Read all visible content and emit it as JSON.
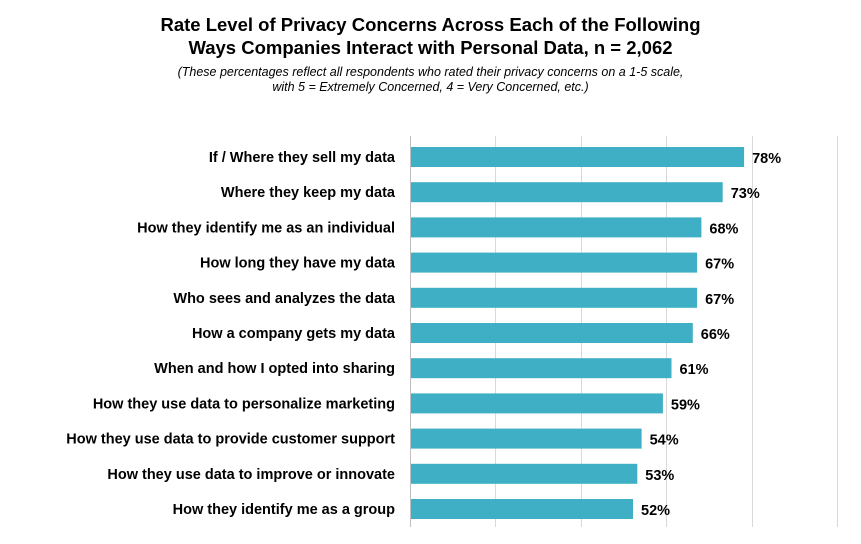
{
  "title_line1": "Rate Level of Privacy Concerns Across Each of the Following",
  "title_line2": "Ways Companies Interact with Personal Data, n = 2,062",
  "subtitle_line1": "(These percentages reflect all respondents who rated their privacy concerns on a 1-5 scale,",
  "subtitle_line2": "with 5 = Extremely Concerned, 4 = Very Concerned, etc.)",
  "colors": {
    "bar": "#3FAFC5",
    "grid": "#d9d9d9",
    "axis": "#bfbfbf"
  },
  "chart_data": {
    "type": "bar",
    "orientation": "horizontal",
    "title": "Rate Level of Privacy Concerns Across Each of the Following Ways Companies Interact with Personal Data, n = 2,062",
    "subtitle": "(These percentages reflect all respondents who rated their privacy concerns on a 1-5 scale, with 5 = Extremely Concerned, 4 = Very Concerned, etc.)",
    "categories": [
      "If / Where they sell my data",
      "Where they keep my data",
      "How they identify me as an individual",
      "How long they have my data",
      "Who sees and analyzes the data",
      "How a company gets my data",
      "When and how I opted into sharing",
      "How they use data to personalize marketing",
      "How they use data to provide customer support",
      "How they use data to improve or innovate",
      "How they identify me as a group"
    ],
    "values": [
      78,
      73,
      68,
      67,
      67,
      66,
      61,
      59,
      54,
      53,
      52
    ],
    "value_labels": [
      "78%",
      "73%",
      "68%",
      "67%",
      "67%",
      "66%",
      "61%",
      "59%",
      "54%",
      "53%",
      "52%"
    ],
    "xlim": [
      0,
      100
    ],
    "xlabel": "",
    "ylabel": "",
    "grid": true,
    "legend": "none"
  }
}
